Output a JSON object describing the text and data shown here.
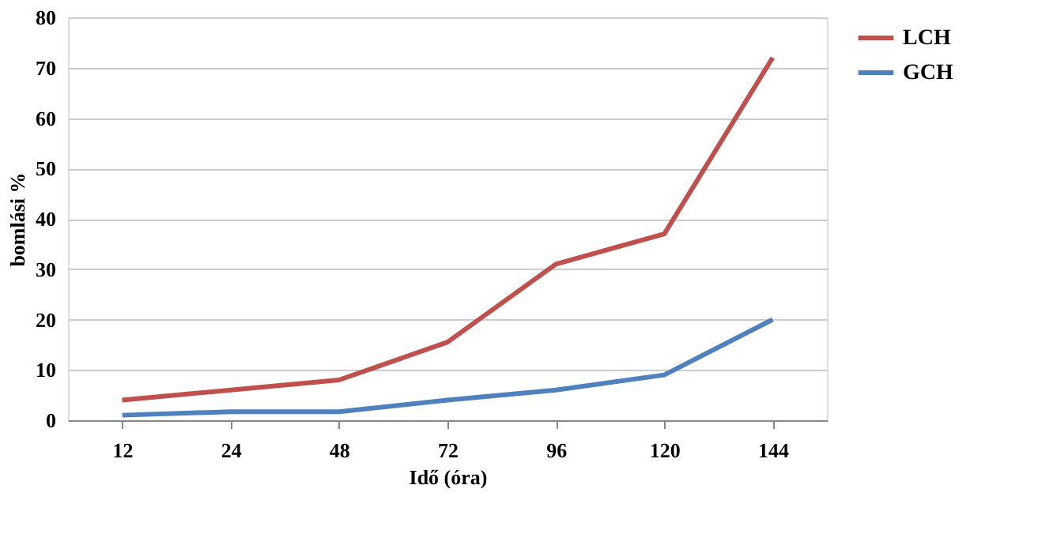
{
  "chart_data": {
    "type": "line",
    "xlabel": "Idő (óra)",
    "ylabel": "bomlási %",
    "categories": [
      "12",
      "24",
      "48",
      "72",
      "96",
      "120",
      "144"
    ],
    "series": [
      {
        "name": "LCH",
        "color": "#c0504d",
        "values": [
          4,
          6,
          8,
          15.5,
          31,
          37,
          72
        ]
      },
      {
        "name": "GCH",
        "color": "#4f81bd",
        "values": [
          1,
          1.7,
          1.7,
          4,
          6,
          9,
          20
        ]
      }
    ],
    "ylim": [
      0,
      80
    ],
    "yticks": [
      0,
      10,
      20,
      30,
      40,
      50,
      60,
      70,
      80
    ],
    "grid": "y",
    "legend": "right",
    "marker": "none",
    "line_style": "solid"
  }
}
